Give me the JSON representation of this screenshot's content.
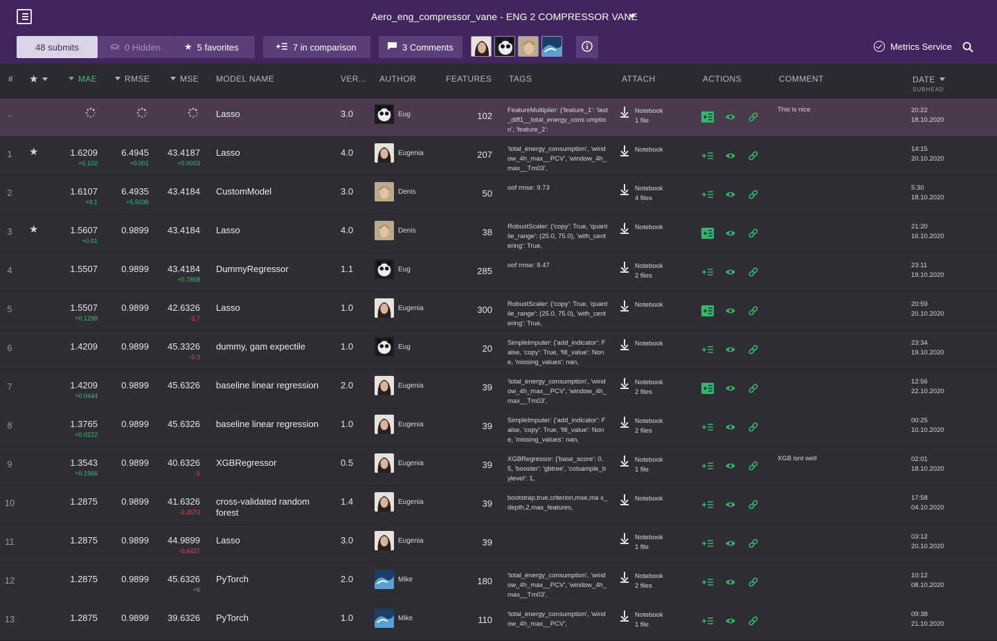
{
  "header": {
    "title": "Aero_eng_compressor_vane - ENG 2 COMPRESSOR VANE",
    "submits": "48 submits",
    "hidden": "0 Hidden",
    "favorites": "5 favorites",
    "comparison": "7 in comparison",
    "comments": "3 Comments",
    "metrics_service": "Metrics Service"
  },
  "columns": {
    "idx": "#",
    "mae": "MAE",
    "rmse": "RMSE",
    "mse": "MSE",
    "model": "MODEL NAME",
    "ver": "VER...",
    "author": "AUTHOR",
    "features": "FEATURES",
    "tags": "TAGS",
    "attach": "ATTACH",
    "actions": "ACTIONS",
    "comment": "COMMENT",
    "date": "DATE",
    "subhead": "SUBHEAD"
  },
  "colors": {
    "header_bg": "#41255f",
    "positive": "#35c27a",
    "negative": "#e2475a",
    "accent_green": "#35c27a"
  },
  "rows": [
    {
      "idx": "-",
      "star": false,
      "loading": true,
      "mae": "",
      "mae_d": "",
      "rmse": "",
      "rmse_d": "",
      "mse": "",
      "mse_d": "",
      "model": "Lasso",
      "ver": "3.0",
      "author": "Eug",
      "avatar": "panda",
      "features": "102",
      "tags": "FeatureMultiplier: {'feature_1': 'last_diff1__total_energy_cons umption', 'feature_2':",
      "attach": "Notebook",
      "attach2": "1 file",
      "add_box": true,
      "comment": "This is nice",
      "time": "20:22",
      "day": "18.10.2020"
    },
    {
      "idx": "1",
      "star": true,
      "mae": "1.6209",
      "mae_d": "+0.102",
      "rmse": "6.4945",
      "rmse_d": "+0.001",
      "mse": "43.4187",
      "mse_d": "+0.0003",
      "model": "Lasso",
      "ver": "4.0",
      "author": "Eugenia",
      "avatar": "woman",
      "features": "207",
      "tags": "'total_energy_consumption', 'window_4h_max__PCV', 'window_4h_max__Tm03',",
      "attach": "Notebook",
      "attach2": "",
      "add_box": false,
      "comment": "",
      "time": "14:15",
      "day": "20.10.2020"
    },
    {
      "idx": "2",
      "star": false,
      "mae": "1.6107",
      "mae_d": "+0.1",
      "rmse": "6.4935",
      "rmse_d": "+5,5036",
      "mse": "43.4184",
      "mse_d": "",
      "model": "CustomModel",
      "ver": "3.0",
      "author": "Denis",
      "avatar": "man",
      "features": "50",
      "tags": "oof rmse: 9.73",
      "attach": "Notebook",
      "attach2": "4 files",
      "add_box": false,
      "comment": "",
      "time": "5:30",
      "day": "18.10.2020"
    },
    {
      "idx": "3",
      "star": true,
      "mae": "1.5607",
      "mae_d": "+0.01",
      "rmse": "0.9899",
      "rmse_d": "",
      "mse": "43.4184",
      "mse_d": "",
      "model": "Lasso",
      "ver": "4.0",
      "author": "Denis",
      "avatar": "man",
      "features": "38",
      "tags": "RobustScaler: {'copy': True, 'quantile_range': (25.0, 75.0), 'with_centering': True,",
      "attach": "Notebook",
      "attach2": "",
      "add_box": true,
      "comment": "",
      "time": "21:20",
      "day": "16.10.2020"
    },
    {
      "idx": "4",
      "star": false,
      "mae": "1.5507",
      "mae_d": "",
      "rmse": "0.9899",
      "rmse_d": "",
      "mse": "43.4184",
      "mse_d": "+0.7858",
      "model": "DummyRegressor",
      "ver": "1.1",
      "author": "Eug",
      "avatar": "panda",
      "features": "285",
      "tags": "oof rmse: 9.47",
      "attach": "Notebook",
      "attach2": "2 files",
      "add_box": false,
      "comment": "",
      "time": "23:11",
      "day": "19.10.2020"
    },
    {
      "idx": "5",
      "star": false,
      "mae": "1.5507",
      "mae_d": "+0.1298",
      "rmse": "0.9899",
      "rmse_d": "",
      "mse": "42.6326",
      "mse_d": "-2.7",
      "model": "Lasso",
      "ver": "1.0",
      "author": "Eugenia",
      "avatar": "woman",
      "features": "300",
      "tags": "RobustScaler: {'copy': True, 'quantile_range': (25.0, 75.0), 'with_centering': True,",
      "attach": "Notebook",
      "attach2": "",
      "add_box": true,
      "comment": "",
      "time": "20:59",
      "day": "20.10.2020"
    },
    {
      "idx": "6",
      "star": false,
      "mae": "1.4209",
      "mae_d": "",
      "rmse": "0.9899",
      "rmse_d": "",
      "mse": "45.3326",
      "mse_d": "-0.3",
      "model": "dummy, gam expectile",
      "ver": "1.0",
      "author": "Eug",
      "avatar": "panda",
      "features": "20",
      "tags": "SimpleImputer: {'add_indicator': False, 'copy': True, 'fill_value': None, 'missing_values': nan,",
      "attach": "Notebook",
      "attach2": "",
      "add_box": false,
      "comment": "",
      "time": "23:34",
      "day": "19.10.2020"
    },
    {
      "idx": "7",
      "star": false,
      "mae": "1.4209",
      "mae_d": "+0.0444",
      "rmse": "0.9899",
      "rmse_d": "",
      "mse": "45.6326",
      "mse_d": "",
      "model": "baseline linear regression",
      "ver": "2.0",
      "author": "Eugenia",
      "avatar": "woman",
      "features": "39",
      "tags": "'total_energy_consumption', 'window_4h_max__PCV', 'window_4h_max__Tm03',",
      "attach": "Notebook",
      "attach2": "2 files",
      "add_box": true,
      "comment": "",
      "time": "12:56",
      "day": "22.10.2020"
    },
    {
      "idx": "8",
      "star": false,
      "mae": "1.3765",
      "mae_d": "+0.0222",
      "rmse": "0.9899",
      "rmse_d": "",
      "mse": "45.6326",
      "mse_d": "",
      "model": "baseline linear regression",
      "ver": "1.0",
      "author": "Eugenia",
      "avatar": "woman",
      "features": "39",
      "tags": "SimpleImputer: {'add_indicator': False, 'copy': True, 'fill_value': None, 'missing_values': nan,",
      "attach": "Notebook",
      "attach2": "2 files",
      "add_box": false,
      "comment": "",
      "time": "00:25",
      "day": "10.10.2020"
    },
    {
      "idx": "9",
      "star": false,
      "mae": "1.3543",
      "mae_d": "+0.1966",
      "rmse": "0.9899",
      "rmse_d": "",
      "mse": "40.6326",
      "mse_d": "-1",
      "model": "XGBRegressor",
      "ver": "0.5",
      "author": "Eugenia",
      "avatar": "woman",
      "features": "39",
      "tags": "XGBRegressor: {'base_score': 0.5, 'booster': 'gbtree', 'colsample_bylevel': 1,",
      "attach": "Notebook",
      "attach2": "1 file",
      "add_box": false,
      "comment": "XGB isnt well",
      "time": "02:01",
      "day": "18.10.2020"
    },
    {
      "idx": "10",
      "star": false,
      "mae": "1.2875",
      "mae_d": "",
      "rmse": "0.9899",
      "rmse_d": "",
      "mse": "41.6326",
      "mse_d": "-3.3573",
      "model": "cross-validated random forest",
      "ver": "1.4",
      "author": "Eugenia",
      "avatar": "woman",
      "features": "39",
      "tags": "bootstrap,true,criterion,mse,ma x_depth,2,max_features,",
      "attach": "Notebook",
      "attach2": "",
      "add_box": false,
      "comment": "",
      "time": "17:58",
      "day": "04.10.2020"
    },
    {
      "idx": "11",
      "star": false,
      "mae": "1.2875",
      "mae_d": "",
      "rmse": "0.9899",
      "rmse_d": "",
      "mse": "44.9899",
      "mse_d": "-0.6427",
      "model": "Lasso",
      "ver": "3.0",
      "author": "Eugenia",
      "avatar": "woman",
      "features": "39",
      "tags": "",
      "attach": "Notebook",
      "attach2": "1 file",
      "add_box": false,
      "comment": "",
      "time": "03:12",
      "day": "20.10.2020"
    },
    {
      "idx": "12",
      "star": false,
      "mae": "1.2875",
      "mae_d": "",
      "rmse": "0.9899",
      "rmse_d": "",
      "mse": "45.6326",
      "mse_d": "+6",
      "model": "PyTorch",
      "ver": "2.0",
      "author": "Mike",
      "avatar": "wave",
      "features": "180",
      "tags": "'total_energy_consumption', 'window_4h_max__PCV', 'window_4h_max__Tm03',",
      "attach": "Notebook",
      "attach2": "2 files",
      "add_box": false,
      "comment": "",
      "time": "10:12",
      "day": "08.10.2020"
    },
    {
      "idx": "13",
      "star": false,
      "mae": "1.2875",
      "mae_d": "",
      "rmse": "0.9899",
      "rmse_d": "",
      "mse": "39.6326",
      "mse_d": "",
      "model": "PyTorch",
      "ver": "1.0",
      "author": "Mike",
      "avatar": "wave",
      "features": "110",
      "tags": "'total_energy_consumption', 'window_4h_max__PCV',",
      "attach": "Notebook",
      "attach2": "1 file",
      "add_box": false,
      "comment": "",
      "time": "09:38",
      "day": "21.10.2020"
    }
  ]
}
